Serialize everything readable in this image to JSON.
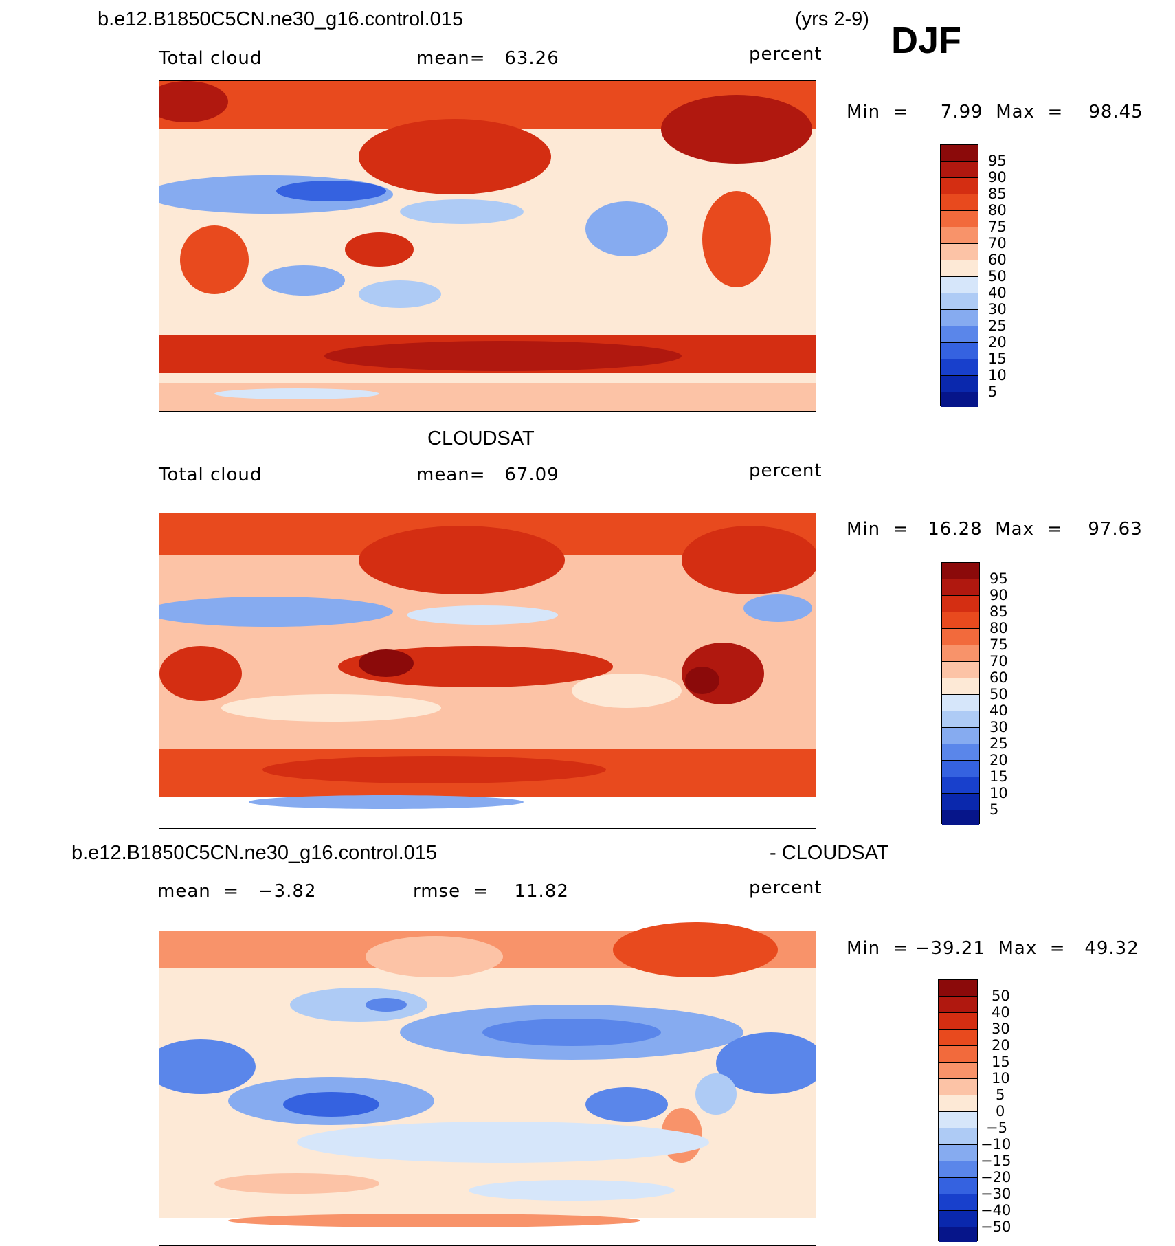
{
  "header": {
    "case_name": "b.e12.B1850C5CN.ne30_g16.control.015",
    "years": "(yrs 2-9)",
    "season": "DJF"
  },
  "panels": [
    {
      "id": "model",
      "variable": "Total cloud",
      "stat_text": "mean=   63.26",
      "units": "percent",
      "minmax_text": "Min  =     7.99  Max  =    98.45",
      "colorbar_labels": [
        "95",
        "90",
        "85",
        "80",
        "75",
        "70",
        "60",
        "50",
        "40",
        "30",
        "25",
        "20",
        "15",
        "10",
        "5"
      ]
    },
    {
      "id": "obs",
      "title": "CLOUDSAT",
      "variable": "Total cloud",
      "stat_text": "mean=   67.09",
      "units": "percent",
      "minmax_text": "Min  =   16.28  Max  =    97.63",
      "colorbar_labels": [
        "95",
        "90",
        "85",
        "80",
        "75",
        "70",
        "60",
        "50",
        "40",
        "30",
        "25",
        "20",
        "15",
        "10",
        "5"
      ]
    },
    {
      "id": "diff",
      "title_left": "b.e12.B1850C5CN.ne30_g16.control.015",
      "title_right": "- CLOUDSAT",
      "mean_text": "mean  =   −3.82",
      "rmse_text": "rmse  =    11.82",
      "units": "percent",
      "minmax_text": "Min  = −39.21  Max  =   49.32",
      "colorbar_labels": [
        "50",
        "40",
        "30",
        "20",
        "15",
        "10",
        "5",
        "0",
        "−5",
        "−10",
        "−15",
        "−20",
        "−30",
        "−40",
        "−50"
      ]
    }
  ],
  "colors": {
    "abs_scale": [
      "#8b0a0a",
      "#b0180f",
      "#d42e12",
      "#e84a1e",
      "#f26a3c",
      "#f8936a",
      "#fcc3a6",
      "#fde9d6",
      "#d6e6fa",
      "#aecbf5",
      "#86abf0",
      "#5a86ea",
      "#3562e0",
      "#1840cc",
      "#0a28ad",
      "#06158a"
    ],
    "diff_scale": [
      "#8b0a0a",
      "#b0180f",
      "#d42e12",
      "#e84a1e",
      "#f26a3c",
      "#f8936a",
      "#fcc3a6",
      "#fde9d6",
      "#d6e6fa",
      "#aecbf5",
      "#86abf0",
      "#5a86ea",
      "#3562e0",
      "#1840cc",
      "#0a28ad",
      "#06158a"
    ]
  }
}
